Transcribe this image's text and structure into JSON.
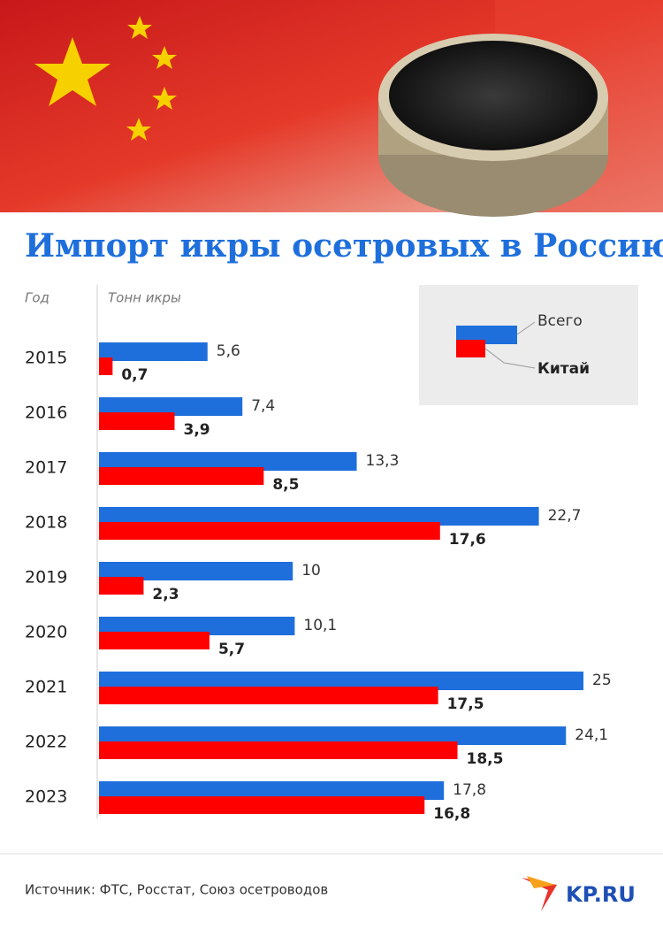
{
  "chart_data": {
    "type": "bar",
    "orientation": "horizontal",
    "title": "Импорт икры осетровых в Россию",
    "y_label": "Год",
    "x_label": "Тонн икры",
    "categories": [
      "2015",
      "2016",
      "2017",
      "2018",
      "2019",
      "2020",
      "2021",
      "2022",
      "2023"
    ],
    "series": [
      {
        "name": "Всего",
        "color": "#1e6fdc",
        "values": [
          5.6,
          7.4,
          13.3,
          22.7,
          10,
          10.1,
          25,
          24.1,
          17.8
        ],
        "value_labels": [
          "5,6",
          "7,4",
          "13,3",
          "22,7",
          "10",
          "10,1",
          "25",
          "24,1",
          "17,8"
        ]
      },
      {
        "name": "Китай",
        "color": "#ff0000",
        "values": [
          0.7,
          3.9,
          8.5,
          17.6,
          2.3,
          5.7,
          17.5,
          18.5,
          16.8
        ],
        "value_labels": [
          "0,7",
          "3,9",
          "8,5",
          "17,6",
          "2,3",
          "5,7",
          "17,5",
          "18,5",
          "16,8"
        ]
      }
    ]
  },
  "source": "Источник: ФТС, Росстат, Союз осетроводов",
  "logo": "KP.RU"
}
